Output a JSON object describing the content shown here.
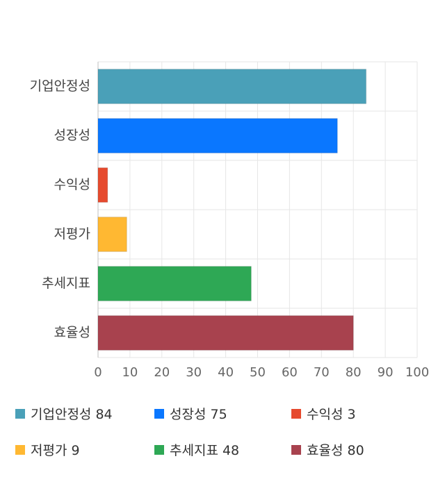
{
  "chart_data": {
    "type": "bar",
    "orientation": "horizontal",
    "categories": [
      "기업안정성",
      "성장성",
      "수익성",
      "저평가",
      "추세지표",
      "효율성"
    ],
    "values": [
      84,
      75,
      3,
      9,
      48,
      80
    ],
    "colors": [
      "#4aa0b8",
      "#0a77ff",
      "#e64a2e",
      "#ffb832",
      "#2ea855",
      "#a8424e"
    ],
    "xlim": [
      0,
      100
    ],
    "x_ticks": [
      "0",
      "10",
      "20",
      "30",
      "40",
      "50",
      "60",
      "70",
      "80",
      "90",
      "100"
    ],
    "grid": true,
    "legend": [
      {
        "label": "기업안정성 84",
        "color": "#4aa0b8"
      },
      {
        "label": "성장성 75",
        "color": "#0a77ff"
      },
      {
        "label": "수익성 3",
        "color": "#e64a2e"
      },
      {
        "label": "저평가 9",
        "color": "#ffb832"
      },
      {
        "label": "추세지표 48",
        "color": "#2ea855"
      },
      {
        "label": "효율성 80",
        "color": "#a8424e"
      }
    ]
  }
}
